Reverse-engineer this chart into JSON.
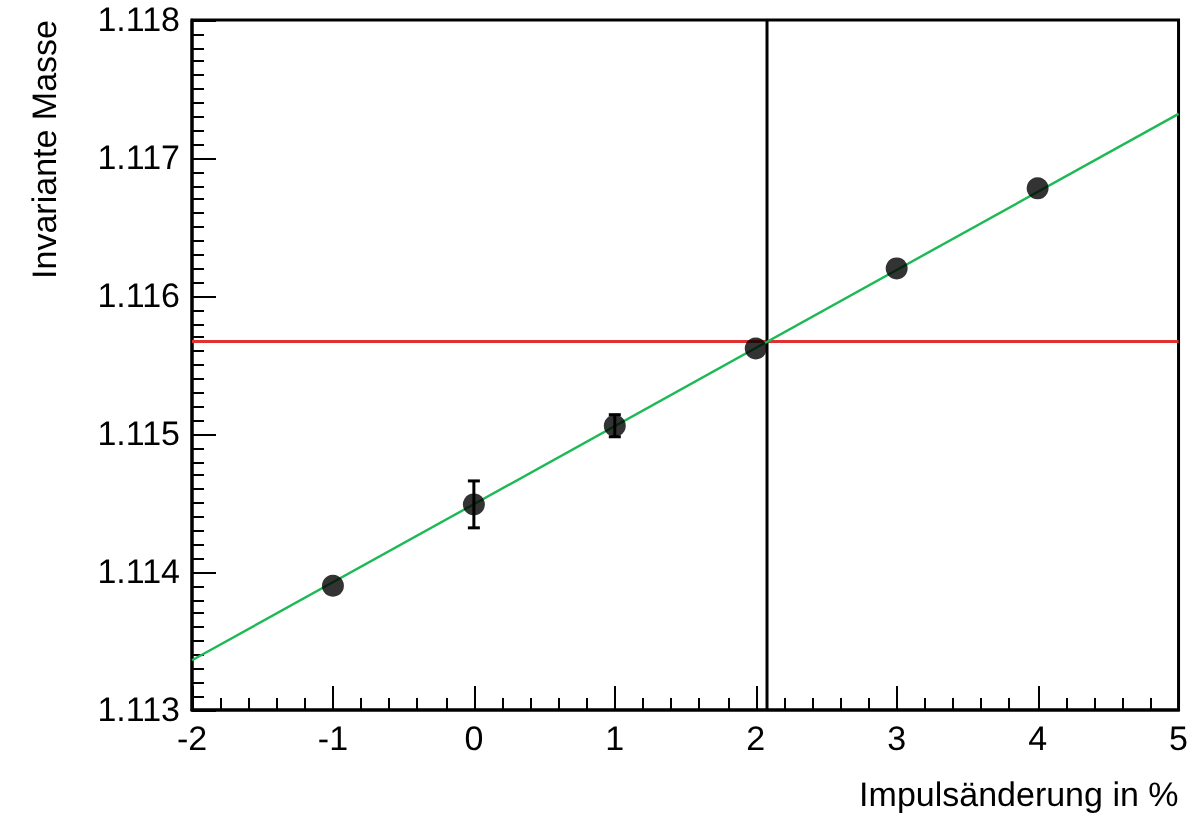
{
  "chart_data": {
    "type": "scatter",
    "xlabel": "Impulsänderung in %",
    "ylabel": "Invariante Masse",
    "x": [
      -1,
      0,
      1,
      2,
      3,
      4
    ],
    "series": [
      {
        "color": "#000000",
        "values": [
          1.1139,
          1.11449,
          1.11506,
          1.11562,
          1.1162,
          1.11678
        ],
        "errors": [
          null,
          0.00017,
          8e-05,
          null,
          null,
          null
        ],
        "marker": "circle"
      },
      {
        "type": "line",
        "color": "#1db954",
        "x": [
          -2,
          5
        ],
        "values": [
          1.11336,
          1.11732
        ],
        "marker": "none"
      }
    ],
    "xlim": [
      -2,
      5
    ],
    "xticks": [
      -2,
      -1,
      0,
      1,
      2,
      3,
      4,
      5
    ],
    "ylim": [
      1.113,
      1.118
    ],
    "yticks": [
      1.113,
      1.114,
      1.115,
      1.116,
      1.117,
      1.118
    ],
    "ref_lines": [
      {
        "axis": "y",
        "value": 1.11567,
        "color": "#e03030"
      },
      {
        "axis": "x",
        "value": 2.08,
        "color": "#000000"
      }
    ],
    "grid": false
  }
}
